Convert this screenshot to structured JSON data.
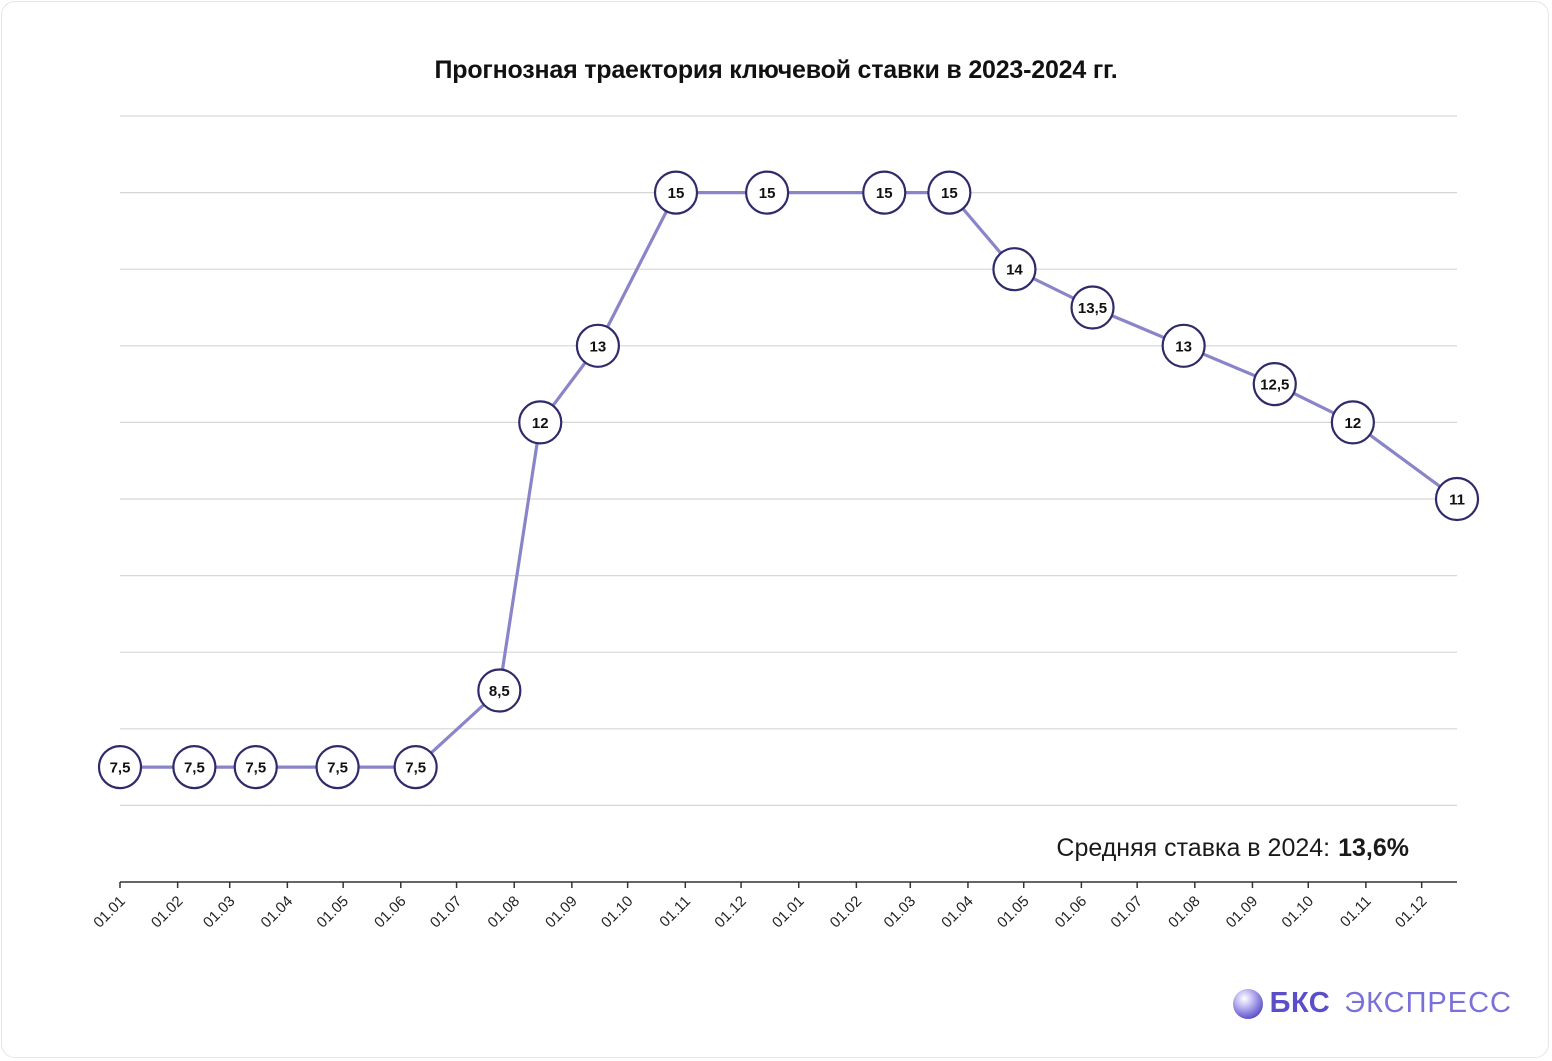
{
  "colors": {
    "line": "#8a84c8",
    "marker_stroke": "#2f2a6b",
    "grid": "#d6d6d6",
    "axis": "#333333",
    "brand": "#5a4fc9"
  },
  "chart_data": {
    "type": "line",
    "title": "Прогнозная траектория ключевой ставки в 2023-2024 гг.",
    "xlabel": "",
    "ylabel": "",
    "x_tick_labels": [
      "01.01",
      "01.02",
      "01.03",
      "01.04",
      "01.05",
      "01.06",
      "01.07",
      "01.08",
      "01.09",
      "01.10",
      "01.11",
      "01.12",
      "01.01",
      "01.02",
      "01.03",
      "01.04",
      "01.05",
      "01.06",
      "01.07",
      "01.08",
      "01.09",
      "01.10",
      "01.11",
      "01.12"
    ],
    "ylim": [
      6,
      16
    ],
    "grid": true,
    "y_axis_labels_shown": false,
    "series": [
      {
        "points": [
          {
            "x": "2023-01-01",
            "y": 7.5,
            "label": "7,5"
          },
          {
            "x": "2023-02-10",
            "y": 7.5,
            "label": "7,5"
          },
          {
            "x": "2023-03-15",
            "y": 7.5,
            "label": "7,5"
          },
          {
            "x": "2023-04-28",
            "y": 7.5,
            "label": "7,5"
          },
          {
            "x": "2023-06-09",
            "y": 7.5,
            "label": "7,5"
          },
          {
            "x": "2023-07-24",
            "y": 8.5,
            "label": "8,5"
          },
          {
            "x": "2023-08-15",
            "y": 12,
            "label": "12"
          },
          {
            "x": "2023-09-15",
            "y": 13,
            "label": "13"
          },
          {
            "x": "2023-10-27",
            "y": 15,
            "label": "15"
          },
          {
            "x": "2023-12-15",
            "y": 15,
            "label": "15"
          },
          {
            "x": "2024-02-16",
            "y": 15,
            "label": "15"
          },
          {
            "x": "2024-03-22",
            "y": 15,
            "label": "15"
          },
          {
            "x": "2024-04-26",
            "y": 14,
            "label": "14"
          },
          {
            "x": "2024-06-07",
            "y": 13.5,
            "label": "13,5"
          },
          {
            "x": "2024-07-26",
            "y": 13,
            "label": "13"
          },
          {
            "x": "2024-09-13",
            "y": 12.5,
            "label": "12,5"
          },
          {
            "x": "2024-10-25",
            "y": 12,
            "label": "12"
          },
          {
            "x": "2024-12-20",
            "y": 11,
            "label": "11"
          }
        ]
      }
    ],
    "annotation": {
      "label": "Средняя ставка в 2024:",
      "value": "13,6%"
    }
  },
  "brand": {
    "name": "БКС",
    "sub": "ЭКСПРЕСС"
  }
}
